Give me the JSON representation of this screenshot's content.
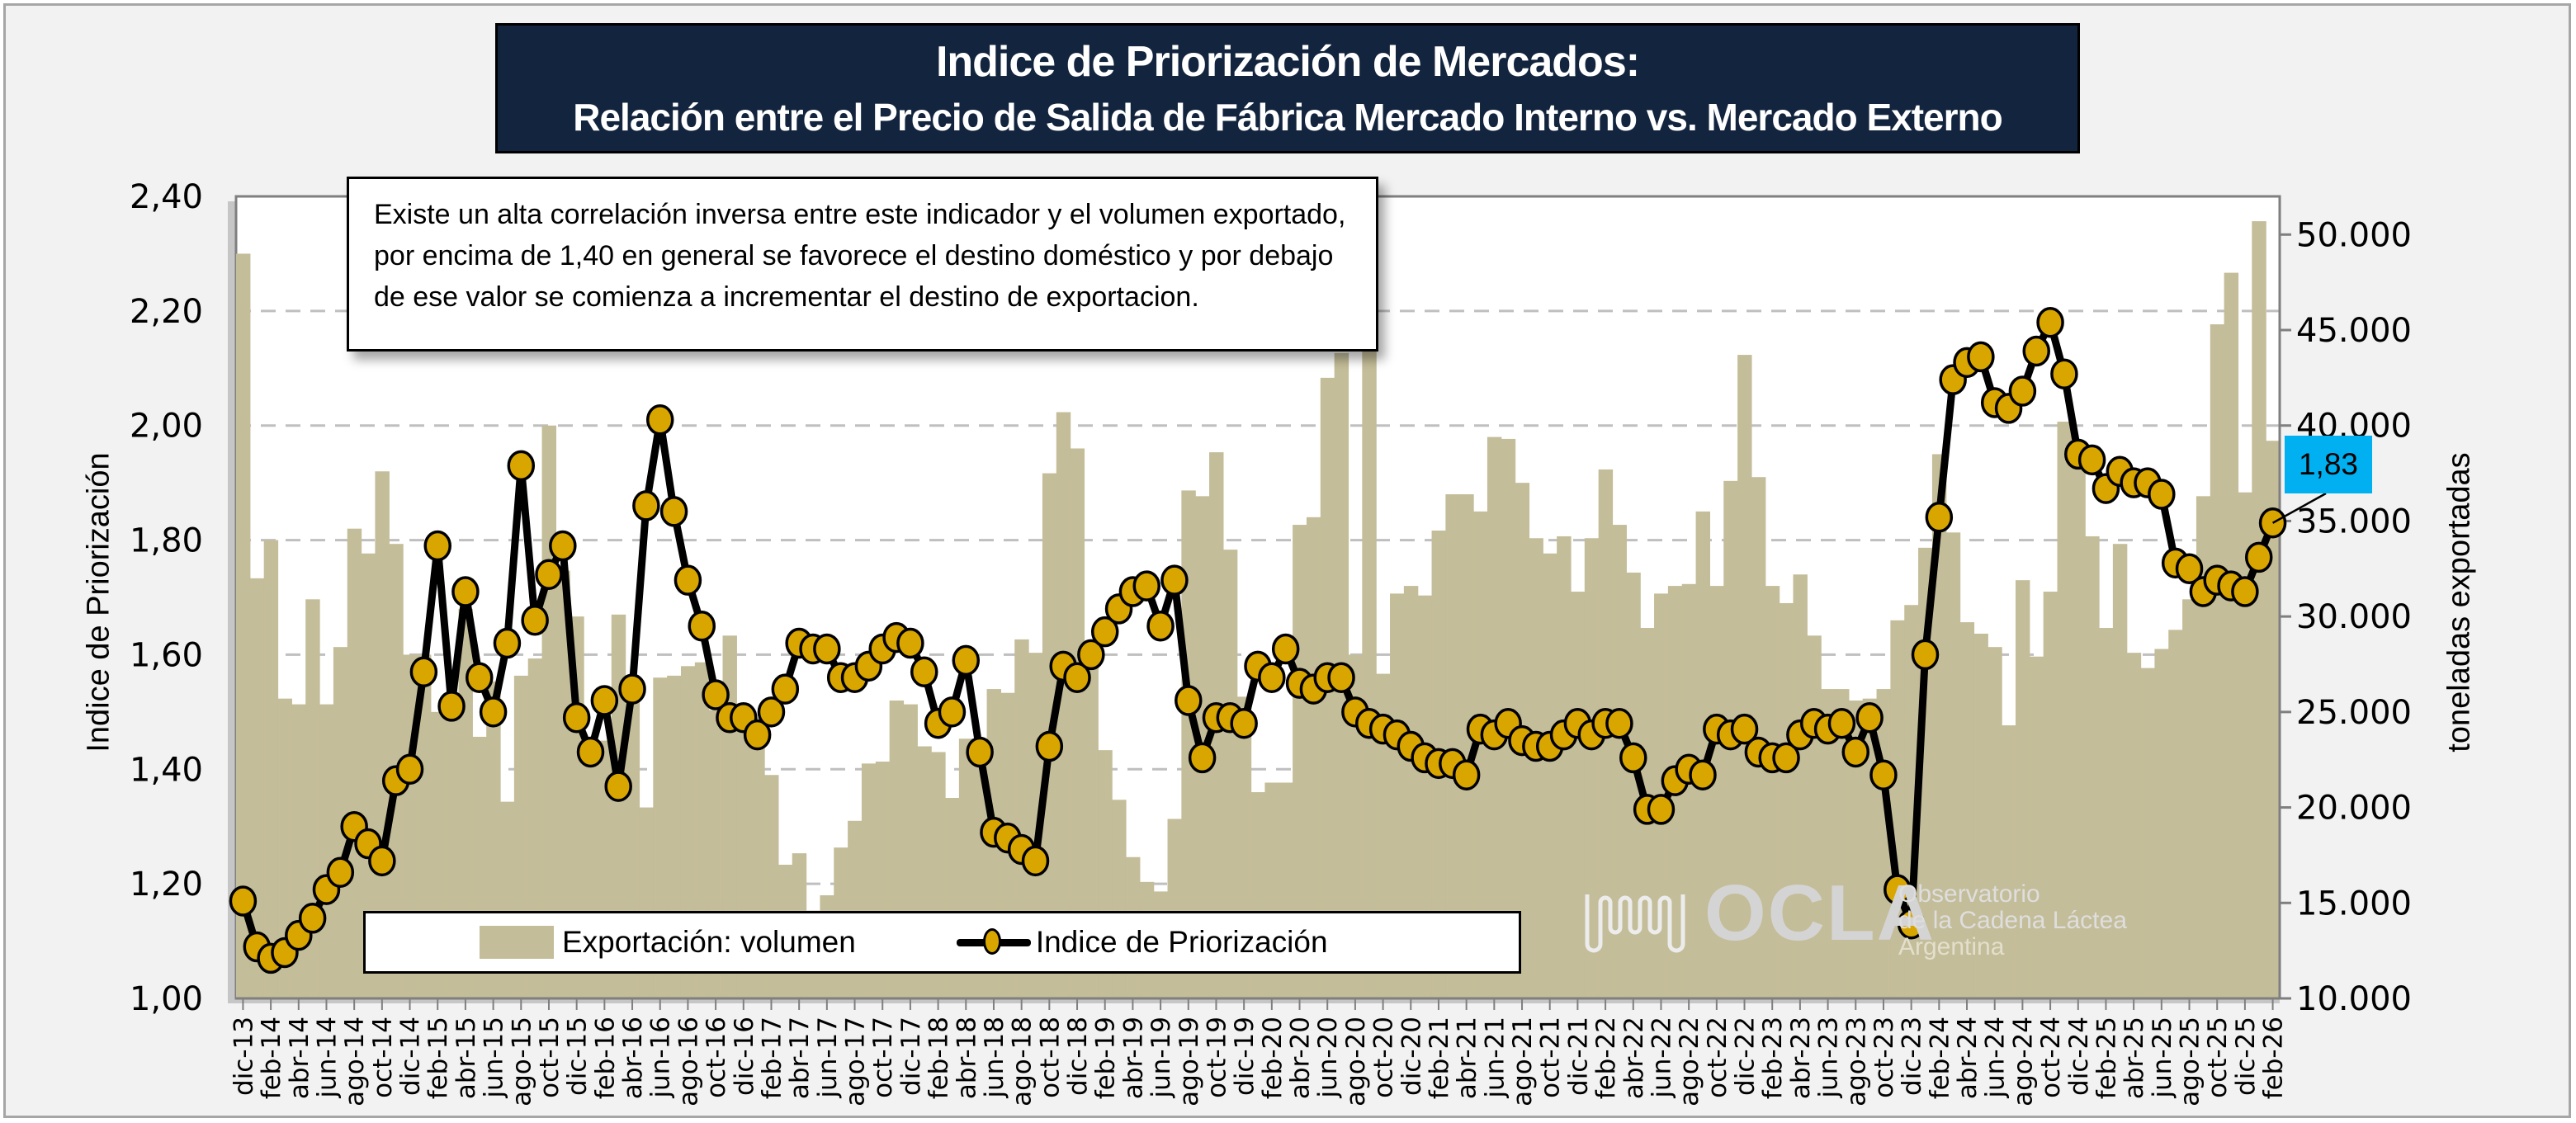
{
  "title": {
    "line1": "Indice de Priorización de Mercados:",
    "line2": "Relación  entre el Precio de Salida de Fábrica Mercado Interno vs. Mercado Externo"
  },
  "note": "Existe un alta correlación inversa entre este indicador y el volumen exportado, por encima de 1,40 en general se favorece el destino doméstico y por debajo de ese valor se comienza a incrementar el destino de exportacion.",
  "callout": {
    "label": "1,83",
    "color": "#00b0f0"
  },
  "logo": {
    "name": "OCLA",
    "line1": "Observatorio",
    "line2": "de la Cadena Láctea",
    "line3": "Argentina"
  },
  "colors": {
    "bar": "#c4bd99",
    "line": "#000000",
    "marker": "#d9a600",
    "title_bg": "#13243e",
    "grid": "#bfbfbf"
  },
  "chart_data": {
    "type": "bar+line",
    "title": "Indice de Priorización de Mercados: Relación entre el Precio de Salida de Fábrica Mercado Interno vs. Mercado Externo",
    "ylabel": "Indice de Priorización",
    "y2label": "toneladas exportadas",
    "ylim": [
      1.0,
      2.4
    ],
    "y2lim": [
      10000,
      52000
    ],
    "yticks": [
      "1,00",
      "1,20",
      "1,40",
      "1,60",
      "1,80",
      "2,00",
      "2,20",
      "2,40"
    ],
    "y2ticks": [
      "10.000",
      "15.000",
      "20.000",
      "25.000",
      "30.000",
      "35.000",
      "40.000",
      "45.000",
      "50.000"
    ],
    "grid": true,
    "legend_position": "bottom-inside",
    "legend": [
      "Exportación: volumen",
      "Indice de Priorización"
    ],
    "annotation": {
      "index": 146,
      "label": "1,83"
    },
    "label_every": 2,
    "categories": [
      "dic-13",
      "ene-14",
      "feb-14",
      "mar-14",
      "abr-14",
      "may-14",
      "jun-14",
      "jul-14",
      "ago-14",
      "sep-14",
      "oct-14",
      "nov-14",
      "dic-14",
      "ene-15",
      "feb-15",
      "mar-15",
      "abr-15",
      "may-15",
      "jun-15",
      "jul-15",
      "ago-15",
      "sep-15",
      "oct-15",
      "nov-15",
      "dic-15",
      "ene-16",
      "feb-16",
      "mar-16",
      "abr-16",
      "may-16",
      "jun-16",
      "jul-16",
      "ago-16",
      "sep-16",
      "oct-16",
      "nov-16",
      "dic-16",
      "ene-17",
      "feb-17",
      "mar-17",
      "abr-17",
      "may-17",
      "jun-17",
      "jul-17",
      "ago-17",
      "sep-17",
      "oct-17",
      "nov-17",
      "dic-17",
      "ene-18",
      "feb-18",
      "mar-18",
      "abr-18",
      "may-18",
      "jun-18",
      "jul-18",
      "ago-18",
      "sep-18",
      "oct-18",
      "nov-18",
      "dic-18",
      "ene-19",
      "feb-19",
      "mar-19",
      "abr-19",
      "may-19",
      "jun-19",
      "jul-19",
      "ago-19",
      "sep-19",
      "oct-19",
      "nov-19",
      "dic-19",
      "ene-20",
      "feb-20",
      "mar-20",
      "abr-20",
      "may-20",
      "jun-20",
      "jul-20",
      "ago-20",
      "sep-20",
      "oct-20",
      "nov-20",
      "dic-20",
      "ene-21",
      "feb-21",
      "mar-21",
      "abr-21",
      "may-21",
      "jun-21",
      "jul-21",
      "ago-21",
      "sep-21",
      "oct-21",
      "nov-21",
      "dic-21",
      "ene-22",
      "feb-22",
      "mar-22",
      "abr-22",
      "may-22",
      "jun-22",
      "jul-22",
      "ago-22",
      "sep-22",
      "oct-22",
      "nov-22",
      "dic-22",
      "ene-23",
      "feb-23",
      "mar-23",
      "abr-23",
      "may-23",
      "jun-23",
      "jul-23",
      "ago-23",
      "sep-23",
      "oct-23",
      "nov-23",
      "dic-23",
      "ene-24",
      "feb-24",
      "mar-24",
      "abr-24",
      "may-24",
      "jun-24",
      "jul-24",
      "ago-24",
      "sep-24",
      "oct-24",
      "nov-24",
      "dic-24",
      "ene-25",
      "feb-25",
      "mar-25",
      "abr-25",
      "may-25",
      "jun-25",
      "jul-25",
      "ago-25",
      "sep-25",
      "oct-25",
      "nov-25",
      "dic-25",
      "ene-26",
      "feb-26"
    ],
    "series": [
      {
        "name": "Exportación: volumen",
        "type": "bar",
        "axis": "right",
        "values": [
          49000,
          32000,
          34000,
          25700,
          25400,
          30900,
          25400,
          28400,
          34600,
          33300,
          37600,
          33800,
          28000,
          28000,
          25000,
          25900,
          30400,
          23700,
          26600,
          20300,
          26900,
          27800,
          40000,
          32400,
          30000,
          23000,
          23500,
          30100,
          26500,
          20000,
          26800,
          26900,
          27400,
          27600,
          25100,
          29000,
          25300,
          24700,
          21700,
          17000,
          17600,
          14600,
          15400,
          17900,
          19300,
          22300,
          22400,
          25600,
          25400,
          23200,
          22900,
          20500,
          23600,
          23400,
          26200,
          26000,
          28800,
          28100,
          37500,
          40700,
          38800,
          28700,
          23000,
          20400,
          17400,
          16100,
          15600,
          19400,
          36600,
          36300,
          38600,
          33500,
          25800,
          20800,
          21300,
          21300,
          34800,
          35200,
          42500,
          43800,
          28000,
          44900,
          27000,
          31200,
          31600,
          31100,
          34500,
          36400,
          36400,
          35500,
          39400,
          39300,
          37000,
          34100,
          33300,
          34200,
          31300,
          34100,
          37700,
          34800,
          32300,
          29400,
          31200,
          31600,
          31700,
          35500,
          31600,
          37100,
          43700,
          37300,
          31600,
          30700,
          32200,
          29000,
          26200,
          26200,
          25600,
          25700,
          26200,
          29800,
          30600,
          33600,
          38500,
          34400,
          29700,
          29100,
          28400,
          24300,
          31900,
          27900,
          31300,
          40200,
          38000,
          34200,
          29400,
          33800,
          28100,
          27300,
          28300,
          29300,
          30900,
          36300,
          45300,
          48000,
          36500,
          50700,
          39200
        ]
      },
      {
        "name": "Indice de Priorización",
        "type": "line",
        "axis": "left",
        "values": [
          1.17,
          1.09,
          1.07,
          1.08,
          1.11,
          1.14,
          1.19,
          1.22,
          1.3,
          1.27,
          1.24,
          1.38,
          1.4,
          1.57,
          1.79,
          1.51,
          1.71,
          1.56,
          1.5,
          1.62,
          1.93,
          1.66,
          1.74,
          1.79,
          1.49,
          1.43,
          1.52,
          1.37,
          1.54,
          1.86,
          2.01,
          1.85,
          1.73,
          1.65,
          1.53,
          1.49,
          1.49,
          1.46,
          1.5,
          1.54,
          1.62,
          1.61,
          1.61,
          1.56,
          1.56,
          1.58,
          1.61,
          1.63,
          1.62,
          1.57,
          1.48,
          1.5,
          1.59,
          1.43,
          1.29,
          1.28,
          1.26,
          1.24,
          1.44,
          1.58,
          1.56,
          1.6,
          1.64,
          1.68,
          1.71,
          1.72,
          1.65,
          1.73,
          1.52,
          1.42,
          1.49,
          1.49,
          1.48,
          1.58,
          1.56,
          1.61,
          1.55,
          1.54,
          1.56,
          1.56,
          1.5,
          1.48,
          1.47,
          1.46,
          1.44,
          1.42,
          1.41,
          1.41,
          1.39,
          1.47,
          1.46,
          1.48,
          1.45,
          1.44,
          1.44,
          1.46,
          1.48,
          1.46,
          1.48,
          1.48,
          1.42,
          1.33,
          1.33,
          1.38,
          1.4,
          1.39,
          1.47,
          1.46,
          1.47,
          1.43,
          1.42,
          1.42,
          1.46,
          1.48,
          1.47,
          1.48,
          1.43,
          1.49,
          1.39,
          1.19,
          1.13,
          1.6,
          1.84,
          2.08,
          2.11,
          2.12,
          2.04,
          2.03,
          2.06,
          2.13,
          2.18,
          2.09,
          1.95,
          1.94,
          1.89,
          1.92,
          1.9,
          1.9,
          1.88,
          1.76,
          1.75,
          1.71,
          1.73,
          1.72,
          1.71,
          1.77,
          1.83
        ]
      }
    ]
  }
}
